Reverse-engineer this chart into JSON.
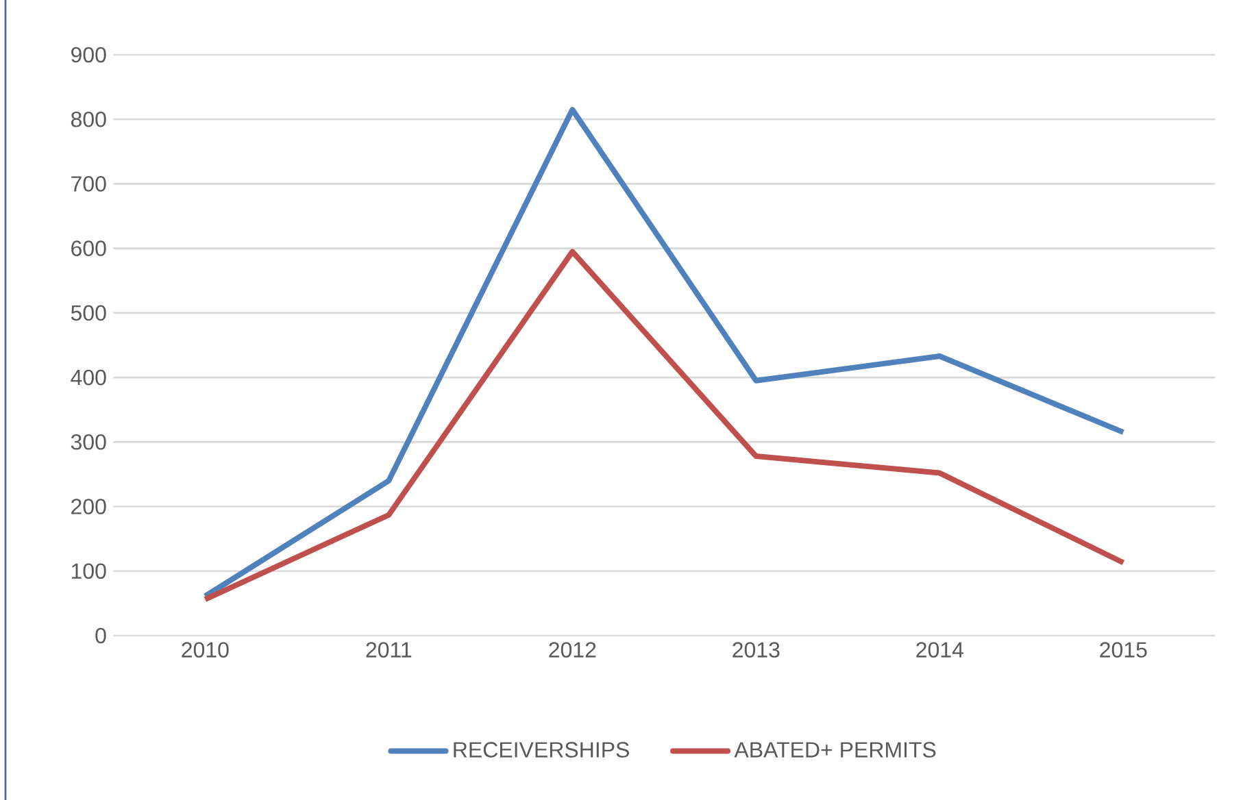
{
  "chart_data": {
    "type": "line",
    "categories": [
      "2010",
      "2011",
      "2012",
      "2013",
      "2014",
      "2015"
    ],
    "series": [
      {
        "name": "RECEIVERSHIPS",
        "color": "#4f81bd",
        "values": [
          61,
          240,
          815,
          395,
          433,
          315
        ]
      },
      {
        "name": "ABATED+ PERMITS",
        "color": "#c0504d",
        "values": [
          56,
          187,
          595,
          278,
          252,
          113
        ]
      }
    ],
    "ylim": [
      0,
      900
    ],
    "yticks": [
      0,
      100,
      200,
      300,
      400,
      500,
      600,
      700,
      800,
      900
    ],
    "grid": "y",
    "legend": "bottom",
    "marker": "none",
    "line_style": "solid"
  }
}
